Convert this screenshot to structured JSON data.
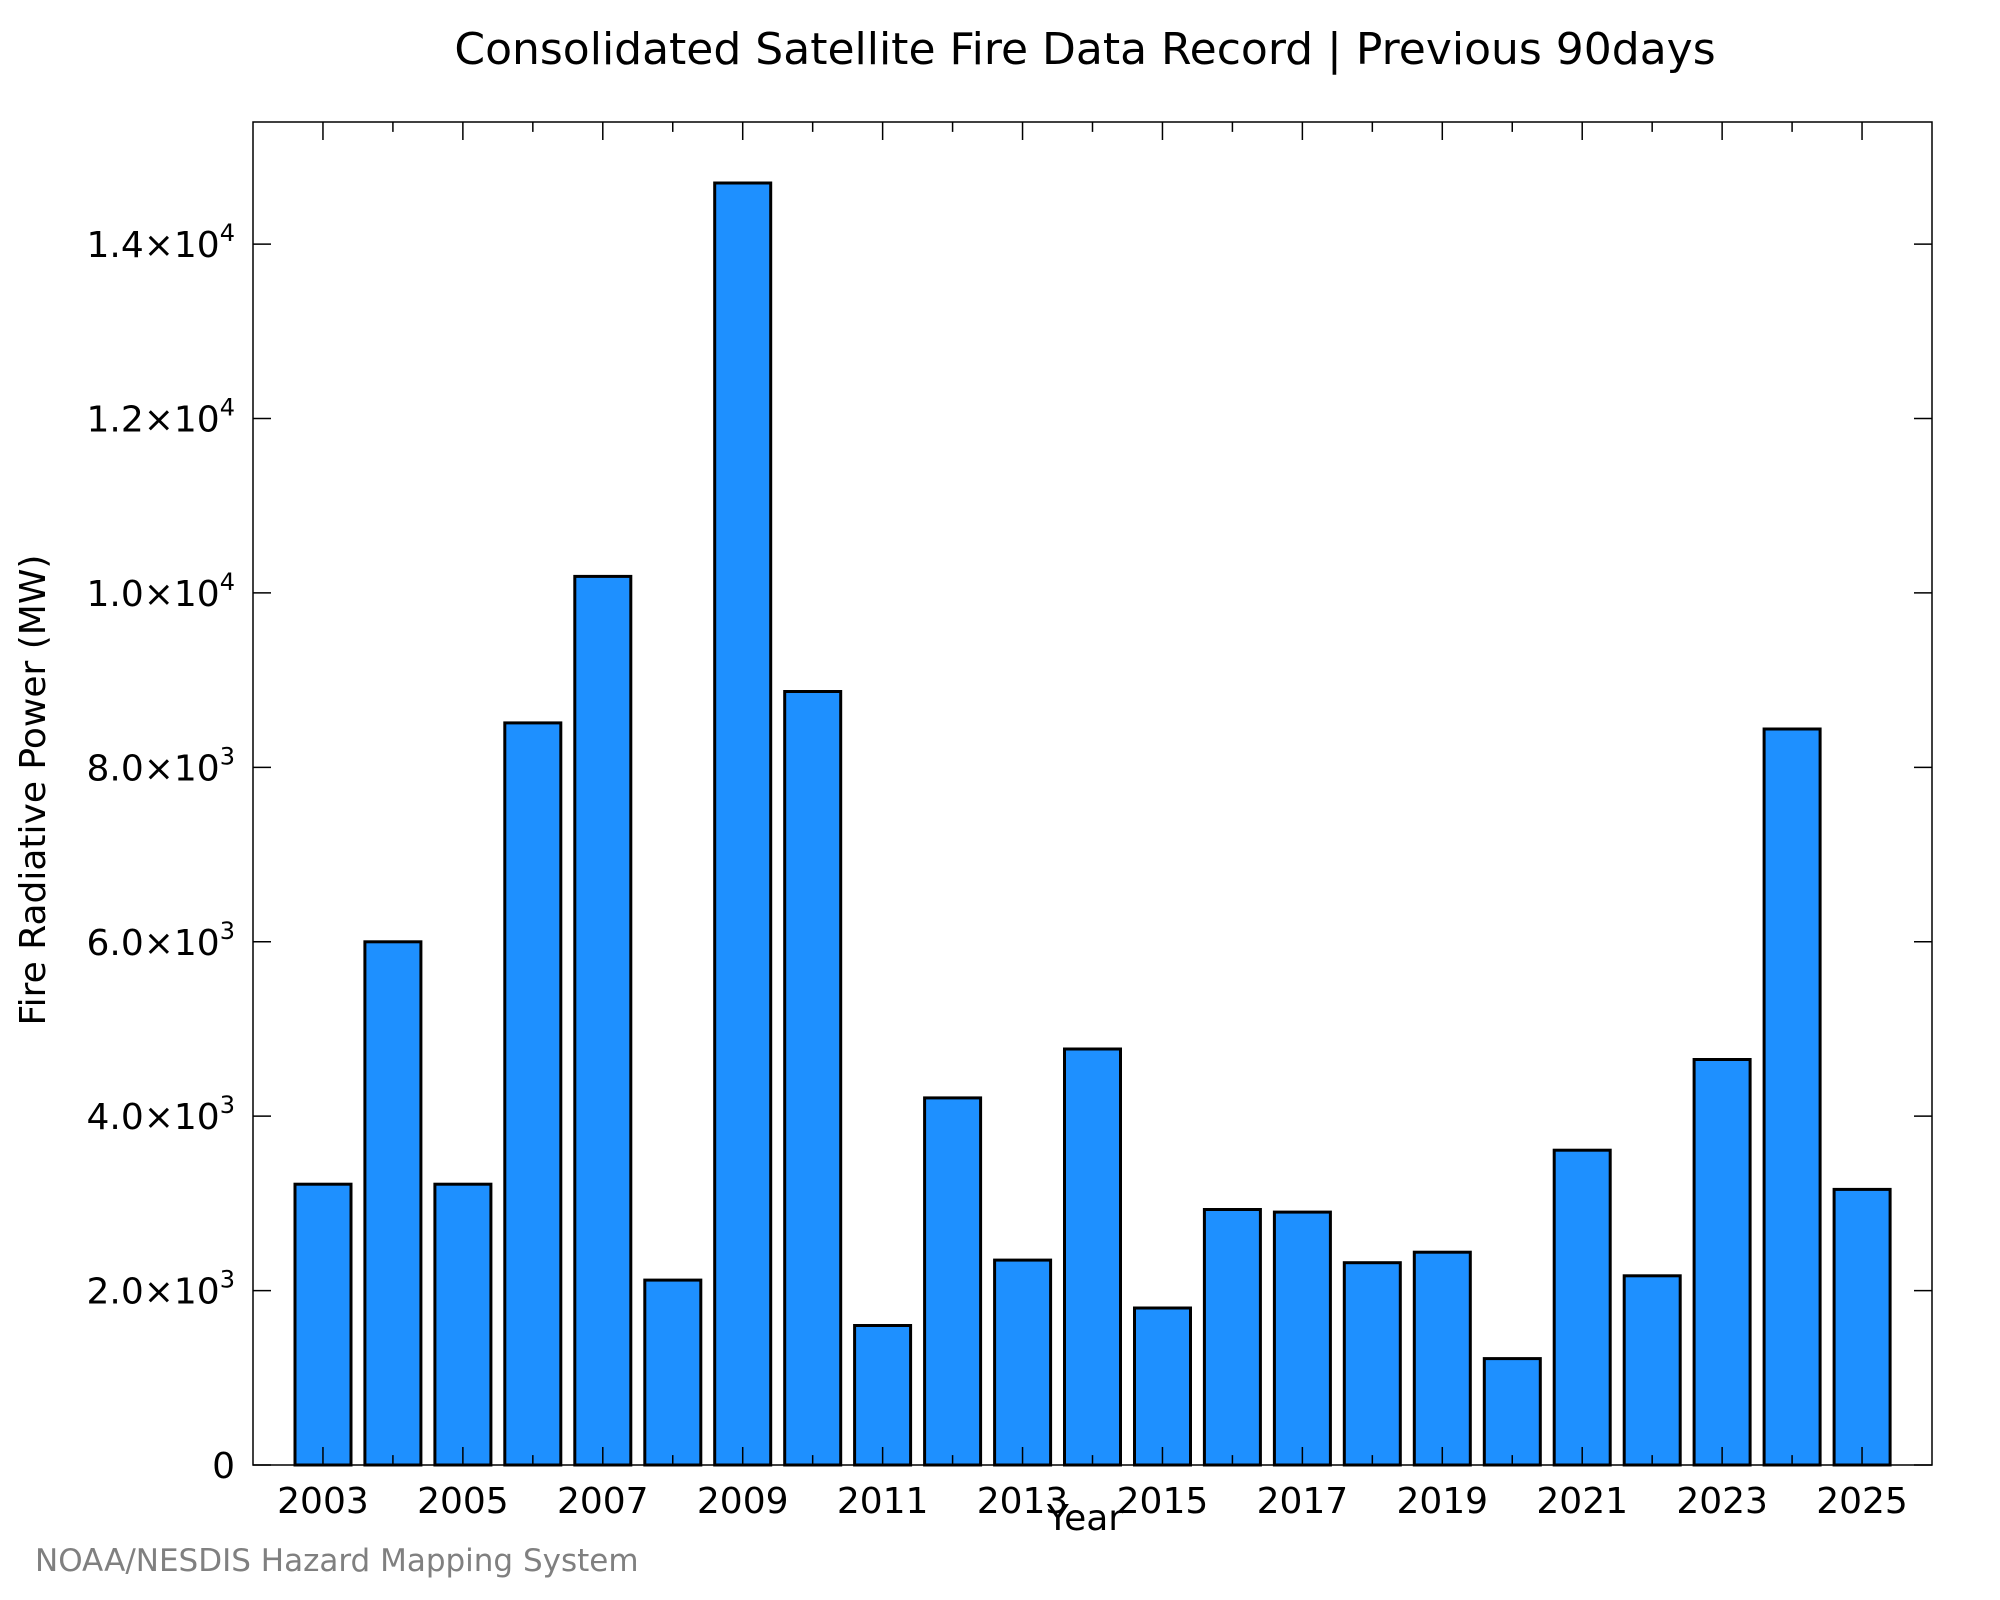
{
  "chart_data": {
    "type": "bar",
    "title": "Consolidated Satellite Fire Data Record | Previous 90days",
    "xlabel": "Year",
    "ylabel": "Fire Radiative Power (MW)",
    "credit": "NOAA/NESDIS Hazard Mapping System",
    "categories": [
      2003,
      2004,
      2005,
      2006,
      2007,
      2008,
      2009,
      2010,
      2011,
      2012,
      2013,
      2014,
      2015,
      2016,
      2017,
      2018,
      2019,
      2020,
      2021,
      2022,
      2023,
      2024,
      2025
    ],
    "values": [
      3220,
      6000,
      3220,
      8510,
      10190,
      2120,
      14700,
      8870,
      1600,
      4210,
      2350,
      4770,
      1800,
      2930,
      2900,
      2320,
      2440,
      1220,
      3610,
      2170,
      4650,
      8440,
      3160
    ],
    "xlim": [
      2002,
      2026
    ],
    "ylim": [
      0,
      15400
    ],
    "x_tick_labels": [
      "2003",
      "2005",
      "2007",
      "2009",
      "2011",
      "2013",
      "2015",
      "2017",
      "2019",
      "2021",
      "2023",
      "2025"
    ],
    "y_ticks": [
      {
        "value": 0,
        "mantissa": "0",
        "exponent": ""
      },
      {
        "value": 2000,
        "mantissa": "2.0×10",
        "exponent": "3"
      },
      {
        "value": 4000,
        "mantissa": "4.0×10",
        "exponent": "3"
      },
      {
        "value": 6000,
        "mantissa": "6.0×10",
        "exponent": "3"
      },
      {
        "value": 8000,
        "mantissa": "8.0×10",
        "exponent": "3"
      },
      {
        "value": 10000,
        "mantissa": "1.0×10",
        "exponent": "4"
      },
      {
        "value": 12000,
        "mantissa": "1.2×10",
        "exponent": "4"
      },
      {
        "value": 14000,
        "mantissa": "1.4×10",
        "exponent": "4"
      }
    ],
    "bar_color": "#1e90ff",
    "bar_edge_color": "#000000",
    "grid": false,
    "legend": "none"
  }
}
